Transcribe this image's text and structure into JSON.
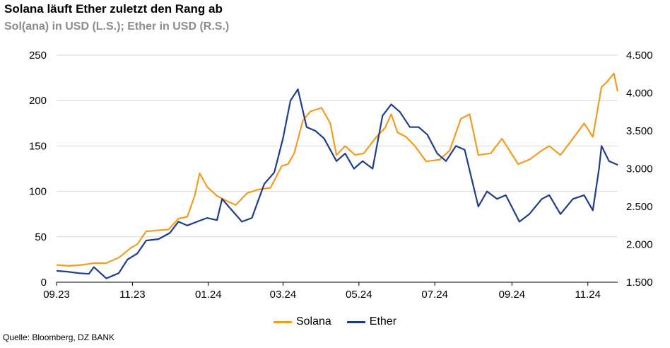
{
  "title": "Solana läuft Ether zuletzt den Rang ab",
  "subtitle": "Sol(ana) in USD (L.S.); Ether in USD (R.S.)",
  "source": "Quelle: Bloomberg, DZ BANK",
  "colors": {
    "solana": "#F39C1E",
    "ether": "#1F3D8C",
    "grid": "#d9d9d9"
  },
  "chart_data": {
    "type": "line",
    "title": "Solana läuft Ether zuletzt den Rang ab",
    "subtitle": "Sol(ana) in USD (L.S.); Ether in USD (R.S.)",
    "grid": "horizontal",
    "legend_position": "bottom",
    "x_tick_labels": [
      "09.23",
      "11.23",
      "01.24",
      "03.24",
      "05.24",
      "07.24",
      "09.24",
      "11.24"
    ],
    "x_ticks": [
      "2023-09-01",
      "2023-11-01",
      "2024-01-01",
      "2024-03-01",
      "2024-05-01",
      "2024-07-01",
      "2024-09-01",
      "2024-11-01"
    ],
    "x_range": [
      "2023-09-01",
      "2024-11-25"
    ],
    "y_left": {
      "ticks": [
        0,
        50,
        100,
        150,
        200,
        250
      ],
      "tick_labels": [
        "0",
        "50",
        "100",
        "150",
        "200",
        "250"
      ],
      "range": [
        0,
        250
      ]
    },
    "y_right": {
      "ticks": [
        1500,
        2000,
        2500,
        3000,
        3500,
        4000,
        4500
      ],
      "tick_labels": [
        "1.500",
        "2.000",
        "2.500",
        "3.000",
        "3.500",
        "4.000",
        "4.500"
      ],
      "range": [
        1500,
        4500
      ]
    },
    "series": [
      {
        "name": "Solana",
        "axis": "left",
        "points": [
          [
            "2023-09-01",
            19
          ],
          [
            "2023-09-11",
            18
          ],
          [
            "2023-09-21",
            19
          ],
          [
            "2023-10-01",
            21
          ],
          [
            "2023-10-11",
            21
          ],
          [
            "2023-10-21",
            27
          ],
          [
            "2023-10-31",
            38
          ],
          [
            "2023-11-05",
            42
          ],
          [
            "2023-11-12",
            56
          ],
          [
            "2023-11-20",
            57
          ],
          [
            "2023-11-30",
            58
          ],
          [
            "2023-12-08",
            70
          ],
          [
            "2023-12-15",
            72
          ],
          [
            "2023-12-21",
            95
          ],
          [
            "2023-12-25",
            120
          ],
          [
            "2023-12-31",
            105
          ],
          [
            "2024-01-08",
            95
          ],
          [
            "2024-01-15",
            90
          ],
          [
            "2024-01-23",
            85
          ],
          [
            "2024-02-01",
            98
          ],
          [
            "2024-02-10",
            102
          ],
          [
            "2024-02-20",
            104
          ],
          [
            "2024-02-29",
            128
          ],
          [
            "2024-03-05",
            130
          ],
          [
            "2024-03-10",
            142
          ],
          [
            "2024-03-17",
            178
          ],
          [
            "2024-03-23",
            188
          ],
          [
            "2024-04-01",
            192
          ],
          [
            "2024-04-08",
            175
          ],
          [
            "2024-04-13",
            140
          ],
          [
            "2024-04-20",
            150
          ],
          [
            "2024-04-28",
            140
          ],
          [
            "2024-05-05",
            142
          ],
          [
            "2024-05-15",
            160
          ],
          [
            "2024-05-22",
            170
          ],
          [
            "2024-05-27",
            185
          ],
          [
            "2024-06-01",
            165
          ],
          [
            "2024-06-08",
            160
          ],
          [
            "2024-06-15",
            150
          ],
          [
            "2024-06-24",
            133
          ],
          [
            "2024-07-05",
            135
          ],
          [
            "2024-07-13",
            145
          ],
          [
            "2024-07-22",
            180
          ],
          [
            "2024-07-29",
            185
          ],
          [
            "2024-08-05",
            140
          ],
          [
            "2024-08-15",
            142
          ],
          [
            "2024-08-24",
            158
          ],
          [
            "2024-09-06",
            130
          ],
          [
            "2024-09-15",
            135
          ],
          [
            "2024-09-25",
            145
          ],
          [
            "2024-10-01",
            150
          ],
          [
            "2024-10-10",
            140
          ],
          [
            "2024-10-21",
            160
          ],
          [
            "2024-10-29",
            175
          ],
          [
            "2024-11-05",
            160
          ],
          [
            "2024-11-12",
            215
          ],
          [
            "2024-11-16",
            220
          ],
          [
            "2024-11-22",
            230
          ],
          [
            "2024-11-25",
            210
          ]
        ]
      },
      {
        "name": "Ether",
        "axis": "right",
        "points": [
          [
            "2023-09-01",
            1650
          ],
          [
            "2023-09-09",
            1640
          ],
          [
            "2023-09-19",
            1620
          ],
          [
            "2023-09-27",
            1610
          ],
          [
            "2023-10-01",
            1700
          ],
          [
            "2023-10-11",
            1550
          ],
          [
            "2023-10-21",
            1620
          ],
          [
            "2023-10-28",
            1800
          ],
          [
            "2023-11-05",
            1880
          ],
          [
            "2023-11-12",
            2050
          ],
          [
            "2023-11-22",
            2070
          ],
          [
            "2023-12-01",
            2150
          ],
          [
            "2023-12-08",
            2300
          ],
          [
            "2023-12-15",
            2250
          ],
          [
            "2023-12-23",
            2300
          ],
          [
            "2023-12-31",
            2350
          ],
          [
            "2024-01-08",
            2320
          ],
          [
            "2024-01-12",
            2600
          ],
          [
            "2024-01-20",
            2450
          ],
          [
            "2024-01-28",
            2300
          ],
          [
            "2024-02-05",
            2350
          ],
          [
            "2024-02-15",
            2800
          ],
          [
            "2024-02-23",
            2950
          ],
          [
            "2024-03-01",
            3400
          ],
          [
            "2024-03-07",
            3900
          ],
          [
            "2024-03-13",
            4050
          ],
          [
            "2024-03-20",
            3550
          ],
          [
            "2024-03-27",
            3500
          ],
          [
            "2024-04-03",
            3400
          ],
          [
            "2024-04-13",
            3100
          ],
          [
            "2024-04-20",
            3200
          ],
          [
            "2024-04-27",
            3000
          ],
          [
            "2024-05-04",
            3100
          ],
          [
            "2024-05-12",
            3000
          ],
          [
            "2024-05-20",
            3700
          ],
          [
            "2024-05-27",
            3850
          ],
          [
            "2024-06-03",
            3750
          ],
          [
            "2024-06-11",
            3550
          ],
          [
            "2024-06-18",
            3550
          ],
          [
            "2024-06-25",
            3450
          ],
          [
            "2024-07-03",
            3200
          ],
          [
            "2024-07-10",
            3100
          ],
          [
            "2024-07-18",
            3300
          ],
          [
            "2024-07-25",
            3250
          ],
          [
            "2024-08-05",
            2500
          ],
          [
            "2024-08-12",
            2700
          ],
          [
            "2024-08-20",
            2600
          ],
          [
            "2024-08-27",
            2650
          ],
          [
            "2024-09-07",
            2300
          ],
          [
            "2024-09-15",
            2400
          ],
          [
            "2024-09-25",
            2600
          ],
          [
            "2024-10-01",
            2650
          ],
          [
            "2024-10-10",
            2400
          ],
          [
            "2024-10-20",
            2600
          ],
          [
            "2024-10-29",
            2650
          ],
          [
            "2024-11-05",
            2450
          ],
          [
            "2024-11-10",
            3000
          ],
          [
            "2024-11-12",
            3300
          ],
          [
            "2024-11-18",
            3100
          ],
          [
            "2024-11-25",
            3050
          ]
        ]
      }
    ]
  }
}
